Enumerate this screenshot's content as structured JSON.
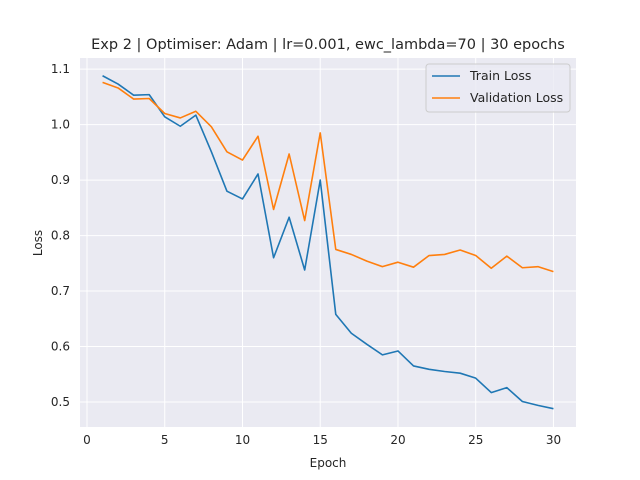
{
  "chart_data": {
    "type": "line",
    "title": "Exp 2 | Optimiser: Adam | lr=0.001, ewc_lambda=70 | 30 epochs",
    "xlabel": "Epoch",
    "ylabel": "Loss",
    "xlim": [
      -0.45,
      31.45
    ],
    "ylim": [
      0.455,
      1.12
    ],
    "xticks": [
      0,
      5,
      10,
      15,
      20,
      25,
      30
    ],
    "yticks": [
      0.5,
      0.6,
      0.7,
      0.8,
      0.9,
      1.0,
      1.1
    ],
    "grid": true,
    "legend_position": "top-right",
    "x": [
      1,
      2,
      3,
      4,
      5,
      6,
      7,
      8,
      9,
      10,
      11,
      12,
      13,
      14,
      15,
      16,
      17,
      18,
      19,
      20,
      21,
      22,
      23,
      24,
      25,
      26,
      27,
      28,
      29,
      30
    ],
    "series": [
      {
        "name": "Train Loss",
        "color": "#1f77b4",
        "values": [
          1.088,
          1.073,
          1.053,
          1.054,
          1.014,
          0.997,
          1.017,
          0.951,
          0.88,
          0.866,
          0.911,
          0.76,
          0.833,
          0.738,
          0.9,
          0.658,
          0.624,
          0.604,
          0.585,
          0.592,
          0.565,
          0.559,
          0.555,
          0.552,
          0.543,
          0.517,
          0.526,
          0.501,
          0.494,
          0.488
        ]
      },
      {
        "name": "Validation Loss",
        "color": "#ff7f0e",
        "values": [
          1.076,
          1.066,
          1.046,
          1.047,
          1.02,
          1.012,
          1.024,
          0.996,
          0.951,
          0.936,
          0.979,
          0.847,
          0.947,
          0.827,
          0.985,
          0.775,
          0.766,
          0.754,
          0.744,
          0.752,
          0.743,
          0.764,
          0.766,
          0.774,
          0.764,
          0.741,
          0.763,
          0.742,
          0.744,
          0.735
        ]
      }
    ]
  }
}
